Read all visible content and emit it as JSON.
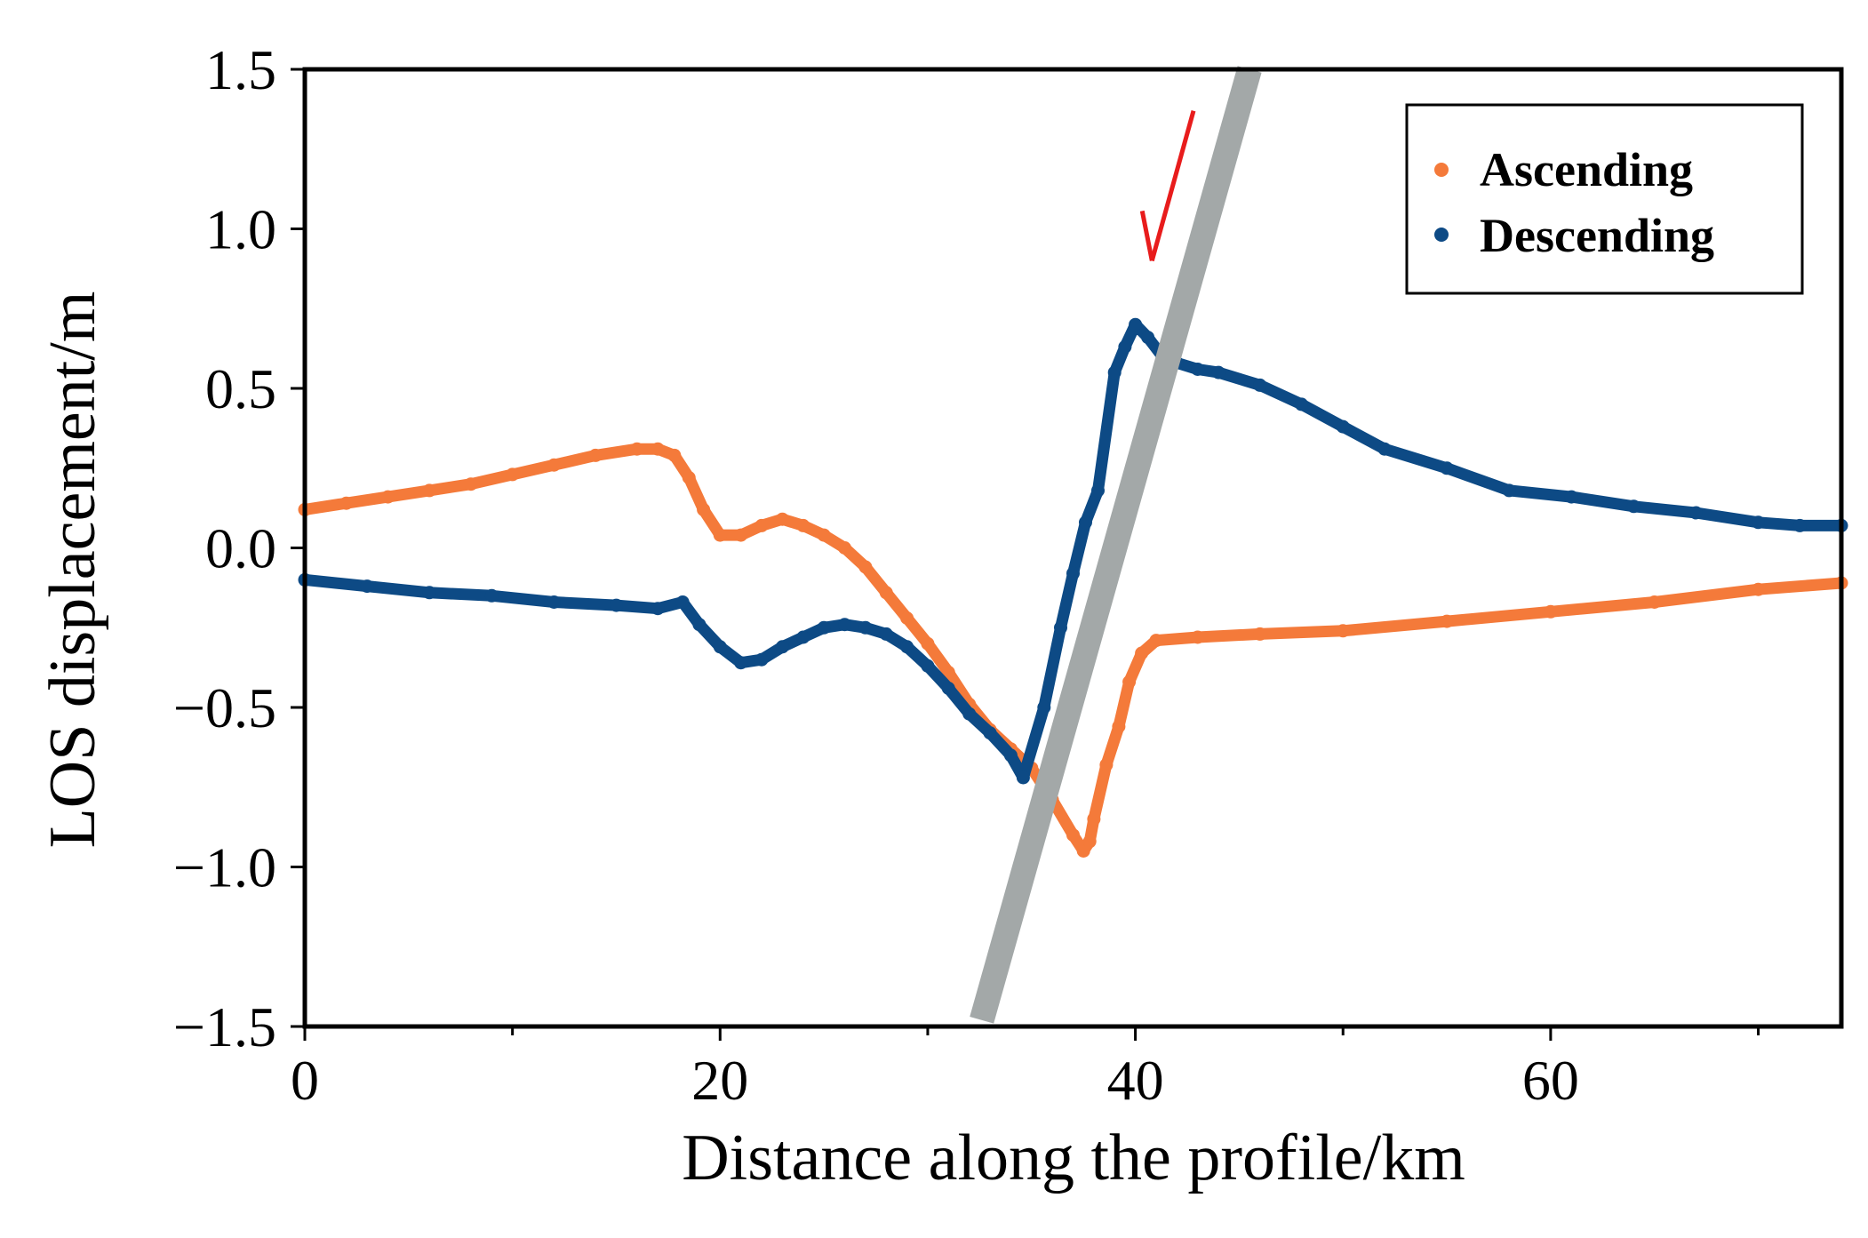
{
  "chart_data": {
    "type": "scatter",
    "title": "",
    "xlabel": "Distance along the profile/km",
    "ylabel": "LOS displacement/m",
    "xlim": [
      0,
      74
    ],
    "ylim": [
      -1.5,
      1.5
    ],
    "x_ticks": [
      0,
      20,
      40,
      60
    ],
    "x_tick_labels": [
      "0",
      "20",
      "40",
      "60"
    ],
    "x_minor_ticks": [
      10,
      30,
      50,
      70
    ],
    "y_ticks": [
      -1.5,
      -1.0,
      -0.5,
      0.0,
      0.5,
      1.0,
      1.5
    ],
    "y_tick_labels": [
      "−1.5",
      "−1.0",
      "−0.5",
      "0.0",
      "0.5",
      "1.0",
      "1.5"
    ],
    "grid": false,
    "legend_position": "top-right",
    "series": [
      {
        "name": "Ascending",
        "color": "#f47a3a",
        "points": [
          [
            0,
            0.12
          ],
          [
            2,
            0.14
          ],
          [
            4,
            0.16
          ],
          [
            6,
            0.18
          ],
          [
            8,
            0.2
          ],
          [
            10,
            0.23
          ],
          [
            12,
            0.26
          ],
          [
            14,
            0.29
          ],
          [
            16,
            0.31
          ],
          [
            17,
            0.31
          ],
          [
            17.8,
            0.29
          ],
          [
            18.5,
            0.22
          ],
          [
            19.2,
            0.12
          ],
          [
            20,
            0.04
          ],
          [
            21,
            0.04
          ],
          [
            22,
            0.07
          ],
          [
            23,
            0.09
          ],
          [
            24,
            0.07
          ],
          [
            25,
            0.04
          ],
          [
            26,
            0.0
          ],
          [
            27,
            -0.06
          ],
          [
            28,
            -0.14
          ],
          [
            29,
            -0.22
          ],
          [
            30,
            -0.3
          ],
          [
            31,
            -0.39
          ],
          [
            32,
            -0.49
          ],
          [
            33,
            -0.57
          ],
          [
            34,
            -0.63
          ],
          [
            35,
            -0.69
          ],
          [
            36,
            -0.79
          ],
          [
            37,
            -0.9
          ],
          [
            37.5,
            -0.95
          ],
          [
            37.8,
            -0.92
          ],
          [
            38,
            -0.85
          ],
          [
            38.6,
            -0.68
          ],
          [
            39.2,
            -0.56
          ],
          [
            39.7,
            -0.42
          ],
          [
            40.3,
            -0.33
          ],
          [
            41,
            -0.29
          ],
          [
            43,
            -0.28
          ],
          [
            46,
            -0.27
          ],
          [
            50,
            -0.26
          ],
          [
            55,
            -0.23
          ],
          [
            60,
            -0.2
          ],
          [
            65,
            -0.17
          ],
          [
            70,
            -0.13
          ],
          [
            74,
            -0.11
          ]
        ]
      },
      {
        "name": "Descending",
        "color": "#0d4a85",
        "points": [
          [
            0,
            -0.1
          ],
          [
            3,
            -0.12
          ],
          [
            6,
            -0.14
          ],
          [
            9,
            -0.15
          ],
          [
            12,
            -0.17
          ],
          [
            15,
            -0.18
          ],
          [
            17,
            -0.19
          ],
          [
            18.2,
            -0.17
          ],
          [
            19,
            -0.24
          ],
          [
            20,
            -0.31
          ],
          [
            21,
            -0.36
          ],
          [
            22,
            -0.35
          ],
          [
            23,
            -0.31
          ],
          [
            24,
            -0.28
          ],
          [
            25,
            -0.25
          ],
          [
            26,
            -0.24
          ],
          [
            27,
            -0.25
          ],
          [
            28,
            -0.27
          ],
          [
            29,
            -0.31
          ],
          [
            30,
            -0.37
          ],
          [
            31,
            -0.44
          ],
          [
            32,
            -0.52
          ],
          [
            33,
            -0.58
          ],
          [
            34,
            -0.65
          ],
          [
            34.6,
            -0.72
          ],
          [
            35.6,
            -0.5
          ],
          [
            36.4,
            -0.25
          ],
          [
            37,
            -0.08
          ],
          [
            37.6,
            0.08
          ],
          [
            38.2,
            0.18
          ],
          [
            39,
            0.55
          ],
          [
            39.5,
            0.63
          ],
          [
            40,
            0.7
          ],
          [
            40.6,
            0.66
          ],
          [
            41.3,
            0.6
          ],
          [
            42,
            0.58
          ],
          [
            43,
            0.56
          ],
          [
            44,
            0.55
          ],
          [
            46,
            0.51
          ],
          [
            48,
            0.45
          ],
          [
            50,
            0.38
          ],
          [
            52,
            0.31
          ],
          [
            55,
            0.25
          ],
          [
            58,
            0.18
          ],
          [
            61,
            0.16
          ],
          [
            64,
            0.13
          ],
          [
            67,
            0.11
          ],
          [
            70,
            0.08
          ],
          [
            72,
            0.07
          ],
          [
            74,
            0.07
          ]
        ]
      }
    ],
    "annotations": [
      {
        "type": "band",
        "name": "fault-trace-band",
        "color": "#a3a8a8",
        "from": [
          32.6,
          -1.48
        ],
        "to": [
          45.5,
          1.5
        ]
      },
      {
        "type": "arrow",
        "name": "red-arrow",
        "color": "#e81c1c",
        "from": [
          42.8,
          1.37
        ],
        "to": [
          40.8,
          0.9
        ]
      }
    ]
  }
}
